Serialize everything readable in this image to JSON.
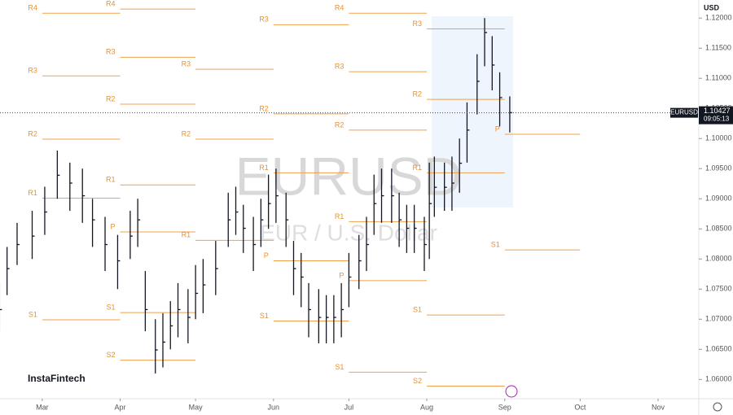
{
  "chart_data": {
    "type": "ohlc",
    "title": "EURUSD",
    "subtitle": "EUR / U.S. Dollar",
    "currency": "USD",
    "brand": "InstaFintech",
    "color": "#131722",
    "pivot_color": "#f0a04b",
    "x": [
      43,
      46,
      50,
      56,
      61,
      66,
      71,
      76,
      80,
      85,
      90,
      95,
      98,
      101,
      105,
      108,
      111,
      114,
      118,
      121,
      124,
      129,
      134,
      137,
      140,
      144,
      147,
      150,
      153,
      157,
      160,
      163,
      166,
      170,
      173,
      176,
      179,
      182,
      186,
      189,
      192,
      195,
      199,
      202,
      205,
      208,
      212,
      214,
      216,
      220,
      223,
      226,
      229,
      233,
      236,
      239,
      242,
      246
    ],
    "high": [
      1.076,
      1.082,
      1.086,
      1.088,
      1.092,
      1.098,
      1.096,
      1.095,
      1.09,
      1.087,
      1.084,
      1.088,
      1.09,
      1.078,
      1.07,
      1.071,
      1.073,
      1.076,
      1.075,
      1.079,
      1.08,
      1.083,
      1.091,
      1.092,
      1.089,
      1.087,
      1.09,
      1.094,
      1.095,
      1.091,
      1.083,
      1.081,
      1.076,
      1.075,
      1.074,
      1.074,
      1.076,
      1.081,
      1.084,
      1.087,
      1.094,
      1.095,
      1.095,
      1.091,
      1.089,
      1.089,
      1.087,
      1.096,
      1.097,
      1.096,
      1.097,
      1.1,
      1.106,
      1.114,
      1.12,
      1.117,
      1.111,
      1.107
    ],
    "low": [
      1.068,
      1.074,
      1.079,
      1.08,
      1.084,
      1.09,
      1.088,
      1.086,
      1.082,
      1.078,
      1.075,
      1.08,
      1.082,
      1.068,
      1.061,
      1.062,
      1.065,
      1.067,
      1.066,
      1.07,
      1.071,
      1.074,
      1.082,
      1.084,
      1.081,
      1.078,
      1.082,
      1.085,
      1.086,
      1.082,
      1.074,
      1.072,
      1.067,
      1.066,
      1.066,
      1.066,
      1.067,
      1.072,
      1.075,
      1.078,
      1.084,
      1.086,
      1.086,
      1.082,
      1.081,
      1.081,
      1.078,
      1.08,
      1.087,
      1.088,
      1.088,
      1.091,
      1.096,
      1.104,
      1.112,
      1.108,
      1.102,
      1.101
    ],
    "close": [
      1.0716,
      1.0784,
      1.0824,
      1.0838,
      1.0878,
      1.0939,
      1.0926,
      1.0905,
      1.0865,
      1.0824,
      1.0797,
      1.0838,
      1.0865,
      1.0716,
      1.0649,
      1.0662,
      1.0689,
      1.0716,
      1.0703,
      1.0743,
      1.0757,
      1.0784,
      1.0865,
      1.0878,
      1.0851,
      1.0824,
      1.0865,
      1.0892,
      1.0905,
      1.0865,
      1.0784,
      1.077,
      1.0716,
      1.0703,
      1.0703,
      1.0703,
      1.0716,
      1.077,
      1.0797,
      1.0824,
      1.0892,
      1.0905,
      1.0905,
      1.0865,
      1.0851,
      1.0851,
      1.0824,
      1.0892,
      1.0919,
      1.0919,
      1.0926,
      1.0959,
      1.1014,
      1.1095,
      1.1176,
      1.1122,
      1.1068,
      1.1043
    ],
    "current": {
      "value": 1.10427,
      "symbol": "EURUSD",
      "time": "09:05:13"
    },
    "pivots": [
      {
        "start": 60,
        "end": 91,
        "levels": [
          {
            "label": "R4",
            "value": 1.1208
          },
          {
            "label": "R3",
            "value": 1.1104
          },
          {
            "label": "R2",
            "value": 1.0999
          },
          {
            "label": "R1",
            "value": 1.0901
          },
          {
            "label": "S1",
            "value": 1.0699
          }
        ]
      },
      {
        "start": 91,
        "end": 121,
        "levels": [
          {
            "label": "R4",
            "value": 1.1215
          },
          {
            "label": "R3",
            "value": 1.1135
          },
          {
            "label": "R2",
            "value": 1.1057
          },
          {
            "label": "R1",
            "value": 1.0923
          },
          {
            "label": "P",
            "value": 1.0845
          },
          {
            "label": "S1",
            "value": 1.0711
          },
          {
            "label": "S2",
            "value": 1.0632
          }
        ]
      },
      {
        "start": 121,
        "end": 152,
        "levels": [
          {
            "label": "R3",
            "value": 1.1115
          },
          {
            "label": "R2",
            "value": 1.0999
          },
          {
            "label": "R1",
            "value": 1.0831
          }
        ]
      },
      {
        "start": 152,
        "end": 182,
        "levels": [
          {
            "label": "R3",
            "value": 1.1189
          },
          {
            "label": "R2",
            "value": 1.1041
          },
          {
            "label": "R1",
            "value": 1.0943
          },
          {
            "label": "P",
            "value": 1.0797
          },
          {
            "label": "S1",
            "value": 1.0697
          }
        ]
      },
      {
        "start": 182,
        "end": 213,
        "levels": [
          {
            "label": "R4",
            "value": 1.1208
          },
          {
            "label": "R3",
            "value": 1.1111
          },
          {
            "label": "R2",
            "value": 1.1014
          },
          {
            "label": "R1",
            "value": 1.0862
          },
          {
            "label": "P",
            "value": 1.0764
          },
          {
            "label": "S1",
            "value": 1.0612
          }
        ]
      },
      {
        "start": 213,
        "end": 244,
        "levels": [
          {
            "label": "R3",
            "value": 1.1182
          },
          {
            "label": "R2",
            "value": 1.1065
          },
          {
            "label": "R1",
            "value": 1.0943
          },
          {
            "label": "S1",
            "value": 1.0707
          },
          {
            "label": "S2",
            "value": 1.0589
          }
        ]
      },
      {
        "start": 244,
        "end": 274,
        "levels": [
          {
            "label": "P",
            "value": 1.1007
          },
          {
            "label": "S1",
            "value": 1.0815
          }
        ]
      }
    ],
    "xlim": [
      43.2,
      321.2
    ],
    "xticks": [
      {
        "value": 60,
        "label": "Mar"
      },
      {
        "value": 91,
        "label": "Apr"
      },
      {
        "value": 121,
        "label": "May"
      },
      {
        "value": 152,
        "label": "Jun"
      },
      {
        "value": 182,
        "label": "Jul"
      },
      {
        "value": 213,
        "label": "Aug"
      },
      {
        "value": 244,
        "label": "Sep"
      },
      {
        "value": 274,
        "label": "Oct"
      },
      {
        "value": 305,
        "label": "Nov"
      }
    ],
    "ylim": [
      1.0568,
      1.123
    ],
    "yticks": [
      {
        "value": 1.06,
        "label": "1.06000"
      },
      {
        "value": 1.065,
        "label": "1.06500"
      },
      {
        "value": 1.07,
        "label": "1.07000"
      },
      {
        "value": 1.075,
        "label": "1.07500"
      },
      {
        "value": 1.08,
        "label": "1.08000"
      },
      {
        "value": 1.085,
        "label": "1.08500"
      },
      {
        "value": 1.09,
        "label": "1.09000"
      },
      {
        "value": 1.095,
        "label": "1.09500"
      },
      {
        "value": 1.1,
        "label": "1.10000"
      },
      {
        "value": 1.105,
        "label": "1.10500"
      },
      {
        "value": 1.11,
        "label": "1.11000"
      },
      {
        "value": 1.115,
        "label": "1.11500"
      },
      {
        "value": 1.12,
        "label": "1.12000"
      }
    ]
  }
}
